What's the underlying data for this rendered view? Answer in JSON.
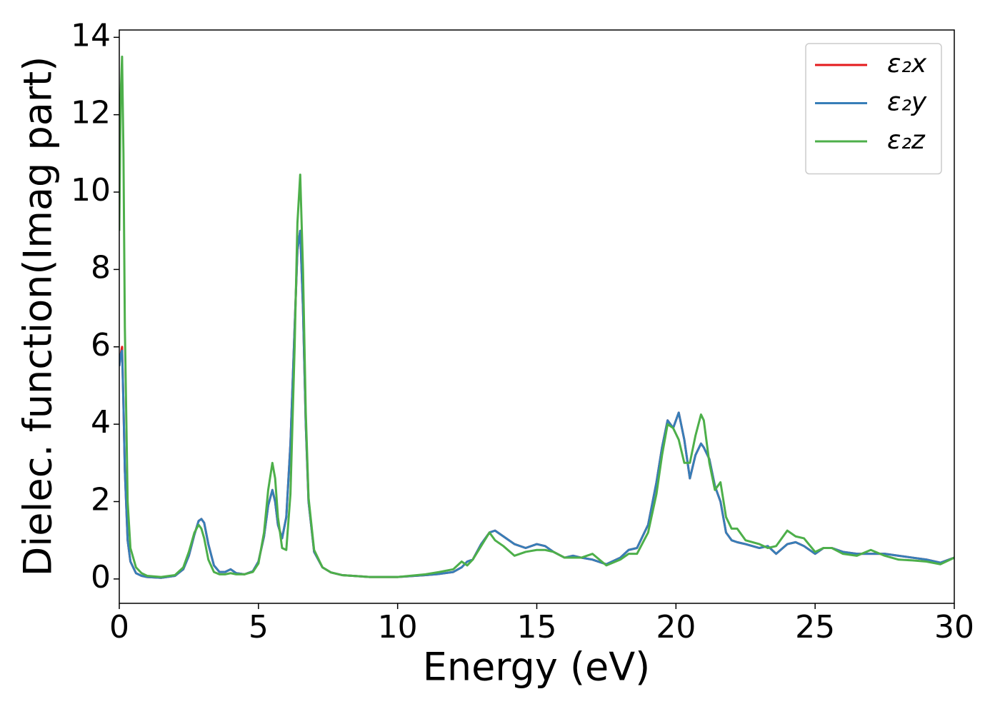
{
  "chart_data": {
    "type": "line",
    "xlabel": "Energy (eV)",
    "ylabel": "Dielec. function(Imag part)",
    "x": [
      0,
      0.05,
      0.1,
      0.15,
      0.2,
      0.3,
      0.4,
      0.6,
      0.8,
      1,
      1.5,
      2,
      2.3,
      2.5,
      2.7,
      2.85,
      2.95,
      3.05,
      3.2,
      3.4,
      3.6,
      3.8,
      4,
      4.2,
      4.5,
      4.8,
      5,
      5.2,
      5.35,
      5.5,
      5.6,
      5.7,
      5.85,
      6,
      6.15,
      6.3,
      6.4,
      6.5,
      6.6,
      6.7,
      6.8,
      7,
      7.3,
      7.6,
      8,
      9,
      10,
      11,
      11.5,
      12,
      12.3,
      12.5,
      12.7,
      13,
      13.3,
      13.5,
      13.8,
      14.2,
      14.6,
      15,
      15.3,
      15.6,
      16,
      16.3,
      16.6,
      17,
      17.5,
      18,
      18.3,
      18.6,
      19,
      19.3,
      19.5,
      19.7,
      19.9,
      20.1,
      20.3,
      20.5,
      20.7,
      20.9,
      21,
      21.2,
      21.4,
      21.6,
      21.8,
      22,
      22.2,
      22.5,
      23,
      23.3,
      23.6,
      24,
      24.3,
      24.6,
      25,
      25.3,
      25.6,
      26,
      26.5,
      27,
      27.5,
      28,
      28.5,
      29,
      29.5,
      30
    ],
    "series": [
      {
        "name": "ε₂x",
        "color": "#e41a1c",
        "values": [
          5.5,
          5.8,
          6.0,
          4.5,
          2.8,
          1.0,
          0.45,
          0.15,
          0.08,
          0.05,
          0.03,
          0.08,
          0.25,
          0.6,
          1.15,
          1.5,
          1.55,
          1.45,
          0.9,
          0.35,
          0.18,
          0.18,
          0.25,
          0.15,
          0.12,
          0.2,
          0.45,
          1.1,
          1.9,
          2.3,
          2.0,
          1.4,
          1.05,
          1.6,
          3.5,
          6.5,
          8.5,
          9.0,
          7.0,
          4.0,
          2.0,
          0.7,
          0.3,
          0.17,
          0.1,
          0.05,
          0.05,
          0.1,
          0.13,
          0.18,
          0.3,
          0.45,
          0.5,
          0.9,
          1.2,
          1.25,
          1.1,
          0.9,
          0.8,
          0.9,
          0.85,
          0.7,
          0.55,
          0.6,
          0.55,
          0.5,
          0.38,
          0.55,
          0.75,
          0.8,
          1.4,
          2.5,
          3.4,
          4.1,
          3.9,
          4.3,
          3.6,
          2.6,
          3.2,
          3.5,
          3.4,
          3.1,
          2.4,
          2.0,
          1.2,
          1.0,
          0.95,
          0.9,
          0.8,
          0.85,
          0.65,
          0.9,
          0.95,
          0.85,
          0.65,
          0.8,
          0.8,
          0.7,
          0.65,
          0.65,
          0.65,
          0.6,
          0.55,
          0.5,
          0.42,
          0.55
        ]
      },
      {
        "name": "ε₂y",
        "color": "#377eb8",
        "values": [
          5.5,
          5.8,
          5.9,
          4.5,
          2.8,
          1.0,
          0.45,
          0.15,
          0.08,
          0.05,
          0.03,
          0.08,
          0.25,
          0.6,
          1.15,
          1.5,
          1.55,
          1.45,
          0.9,
          0.35,
          0.18,
          0.18,
          0.25,
          0.15,
          0.12,
          0.2,
          0.45,
          1.1,
          1.9,
          2.3,
          2.0,
          1.4,
          1.05,
          1.6,
          3.5,
          6.5,
          8.5,
          9.0,
          7.0,
          4.0,
          2.0,
          0.7,
          0.3,
          0.17,
          0.1,
          0.05,
          0.05,
          0.1,
          0.13,
          0.18,
          0.3,
          0.45,
          0.5,
          0.9,
          1.2,
          1.25,
          1.1,
          0.9,
          0.8,
          0.9,
          0.85,
          0.7,
          0.55,
          0.6,
          0.55,
          0.5,
          0.38,
          0.55,
          0.75,
          0.8,
          1.4,
          2.5,
          3.4,
          4.1,
          3.9,
          4.3,
          3.6,
          2.6,
          3.2,
          3.5,
          3.4,
          3.1,
          2.4,
          2.0,
          1.2,
          1.0,
          0.95,
          0.9,
          0.8,
          0.85,
          0.65,
          0.9,
          0.95,
          0.85,
          0.65,
          0.8,
          0.8,
          0.7,
          0.65,
          0.65,
          0.65,
          0.6,
          0.55,
          0.5,
          0.42,
          0.55
        ]
      },
      {
        "name": "ε₂z",
        "color": "#4daf4a",
        "values": [
          9.0,
          12.5,
          13.5,
          11.0,
          6.5,
          2.0,
          0.8,
          0.3,
          0.15,
          0.08,
          0.05,
          0.1,
          0.3,
          0.7,
          1.2,
          1.4,
          1.3,
          1.05,
          0.5,
          0.18,
          0.12,
          0.12,
          0.15,
          0.12,
          0.12,
          0.18,
          0.4,
          1.2,
          2.3,
          3.0,
          2.6,
          1.6,
          0.8,
          0.75,
          2.2,
          6.0,
          9.2,
          10.45,
          8.0,
          4.3,
          2.1,
          0.75,
          0.3,
          0.17,
          0.1,
          0.05,
          0.05,
          0.12,
          0.18,
          0.25,
          0.45,
          0.35,
          0.5,
          0.85,
          1.2,
          1.0,
          0.85,
          0.6,
          0.7,
          0.75,
          0.75,
          0.7,
          0.55,
          0.55,
          0.55,
          0.65,
          0.35,
          0.5,
          0.65,
          0.65,
          1.2,
          2.2,
          3.2,
          4.0,
          3.9,
          3.6,
          3.0,
          3.0,
          3.7,
          4.25,
          4.1,
          3.0,
          2.3,
          2.5,
          1.6,
          1.3,
          1.3,
          1.0,
          0.9,
          0.8,
          0.85,
          1.25,
          1.1,
          1.05,
          0.7,
          0.8,
          0.8,
          0.65,
          0.6,
          0.75,
          0.6,
          0.5,
          0.48,
          0.45,
          0.38,
          0.55
        ]
      }
    ],
    "xlim": [
      0,
      30
    ],
    "xticks": [
      0,
      5,
      10,
      15,
      20,
      25,
      30
    ],
    "ylim": [
      -0.63,
      14.19
    ],
    "yticks": [
      0,
      2,
      4,
      6,
      8,
      10,
      12,
      14
    ],
    "grid": false,
    "legend": "upper right"
  }
}
